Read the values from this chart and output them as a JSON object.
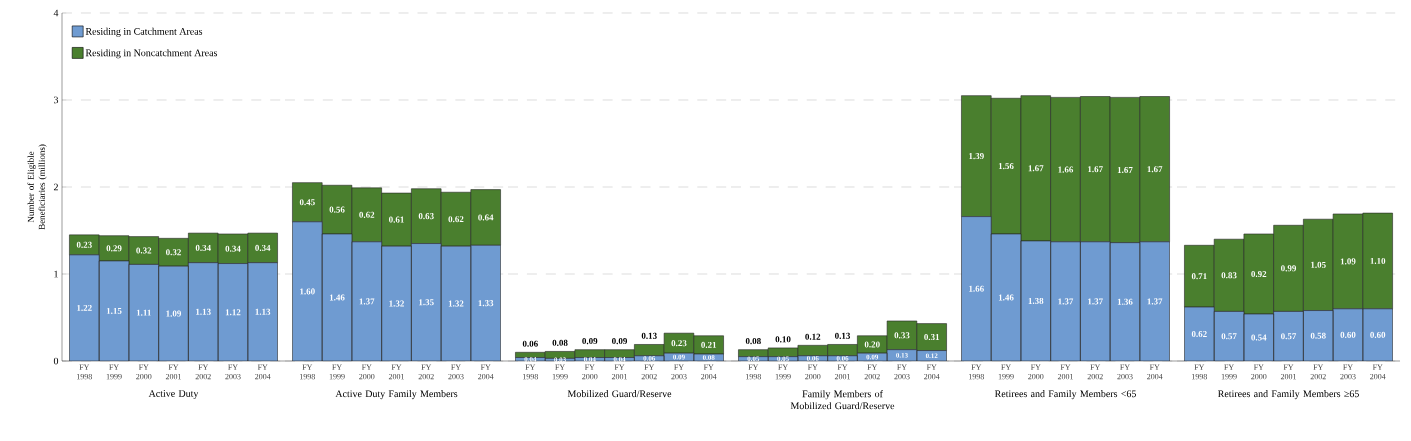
{
  "chart_data": [
    {
      "type": "bar",
      "stacked": true,
      "xlabel": "Active Duty",
      "ylabel": "Number of Eligible Beneficiaries (millions)",
      "ylim": [
        0,
        4
      ],
      "yticks": [
        0,
        1,
        2,
        3,
        4
      ],
      "grid": "y",
      "legend": "top left",
      "categories": [
        "FY 1998",
        "FY 1999",
        "FY 2000",
        "FY 2001",
        "FY 2002",
        "FY 2003",
        "FY 2004"
      ],
      "series": [
        {
          "name": "Residing in Catchment Areas",
          "color": "#6f9bd1",
          "values": [
            1.22,
            1.15,
            1.11,
            1.09,
            1.13,
            1.12,
            1.13
          ],
          "value_labels": [
            "1.22",
            "1.15",
            "1.11",
            "1.09",
            "1.13",
            "1.12",
            "1.13"
          ]
        },
        {
          "name": "Residing in Noncatchment Areas",
          "color": "#4a7f2e",
          "values": [
            0.23,
            0.29,
            0.32,
            0.32,
            0.34,
            0.34,
            0.34
          ],
          "value_labels": [
            "0.23",
            "0.29",
            "0.32",
            "0.32",
            "0.34",
            "0.34",
            "0.34"
          ]
        }
      ]
    },
    {
      "type": "bar",
      "stacked": true,
      "xlabel": "Active Duty Family Members",
      "ylim": [
        0,
        4
      ],
      "yticks": [
        0,
        1,
        2,
        3,
        4
      ],
      "grid": "y",
      "tick_labels": "x",
      "categories": [
        "FY 1998",
        "FY 1999",
        "FY 2000",
        "FY 2001",
        "FY 2002",
        "FY 2003",
        "FY 2004"
      ],
      "series": [
        {
          "color": "#6f9bd1",
          "values": [
            1.6,
            1.46,
            1.37,
            1.32,
            1.35,
            1.32,
            1.33
          ],
          "value_labels": [
            "1.60",
            "1.46",
            "1.37",
            "1.32",
            "1.35",
            "1.32",
            "1.33"
          ]
        },
        {
          "color": "#4a7f2e",
          "values": [
            0.45,
            0.56,
            0.62,
            0.61,
            0.63,
            0.62,
            0.64
          ],
          "value_labels": [
            "0.45",
            "0.56",
            "0.62",
            "0.61",
            "0.63",
            "0.62",
            "0.64"
          ]
        }
      ]
    },
    {
      "type": "bar",
      "stacked": true,
      "xlabel": "Mobilized Guard/Reserve",
      "ylim": [
        0,
        4
      ],
      "yticks": [
        0,
        1,
        2,
        3,
        4
      ],
      "grid": "y",
      "tick_labels": "x",
      "categories": [
        "FY 1998",
        "FY 1999",
        "FY 2000",
        "FY 2001",
        "FY 2002",
        "FY 2003",
        "FY 2004"
      ],
      "series": [
        {
          "color": "#6f9bd1",
          "values": [
            0.04,
            0.03,
            0.04,
            0.04,
            0.06,
            0.09,
            0.08
          ],
          "value_labels": [
            "0.04",
            "0.03",
            "0.04",
            "0.04",
            "0.06",
            "0.09",
            "0.08"
          ]
        },
        {
          "color": "#4a7f2e",
          "values": [
            0.06,
            0.08,
            0.09,
            0.09,
            0.13,
            0.23,
            0.21
          ],
          "value_labels": [
            "0.06",
            "0.08",
            "0.09",
            "0.09",
            "0.13",
            "0.23",
            "0.21"
          ]
        }
      ]
    },
    {
      "type": "bar",
      "stacked": true,
      "xlabel": "Family Members of Mobilized Guard/Reserve",
      "ylim": [
        0,
        4
      ],
      "yticks": [
        0,
        1,
        2,
        3,
        4
      ],
      "grid": "y",
      "tick_labels": "x",
      "categories": [
        "FY 1998",
        "FY 1999",
        "FY 2000",
        "FY 2001",
        "FY 2002",
        "FY 2003",
        "FY 2004"
      ],
      "series": [
        {
          "color": "#6f9bd1",
          "values": [
            0.05,
            0.05,
            0.06,
            0.06,
            0.09,
            0.13,
            0.12
          ],
          "value_labels": [
            "0.05",
            "0.05",
            "0.06",
            "0.06",
            "0.09",
            "0.13",
            "0.12"
          ]
        },
        {
          "color": "#4a7f2e",
          "values": [
            0.08,
            0.1,
            0.12,
            0.13,
            0.2,
            0.33,
            0.31
          ],
          "value_labels": [
            "0.08",
            "0.10",
            "0.12",
            "0.13",
            "0.20",
            "0.33",
            "0.31"
          ]
        }
      ]
    },
    {
      "type": "bar",
      "stacked": true,
      "xlabel": "Retirees and Family Members <65",
      "ylim": [
        0,
        4
      ],
      "yticks": [
        0,
        1,
        2,
        3,
        4
      ],
      "grid": "y",
      "tick_labels": "x",
      "categories": [
        "FY 1998",
        "FY 1999",
        "FY 2000",
        "FY 2001",
        "FY 2002",
        "FY 2003",
        "FY 2004"
      ],
      "series": [
        {
          "color": "#6f9bd1",
          "values": [
            1.66,
            1.46,
            1.38,
            1.37,
            1.37,
            1.36,
            1.37
          ],
          "value_labels": [
            "1.66",
            "1.46",
            "1.38",
            "1.37",
            "1.37",
            "1.36",
            "1.37"
          ]
        },
        {
          "color": "#4a7f2e",
          "values": [
            1.39,
            1.56,
            1.67,
            1.66,
            1.67,
            1.67,
            1.67
          ],
          "value_labels": [
            "1.39",
            "1.56",
            "1.67",
            "1.66",
            "1.67",
            "1.67",
            "1.67"
          ]
        }
      ]
    },
    {
      "type": "bar",
      "stacked": true,
      "xlabel": "Retirees and Family Members ≥65",
      "ylim": [
        0,
        4
      ],
      "yticks": [
        0,
        1,
        2,
        3,
        4
      ],
      "grid": "y",
      "tick_labels": "x",
      "categories": [
        "FY 1998",
        "FY 1999",
        "FY 2000",
        "FY 2001",
        "FY 2002",
        "FY 2003",
        "FY 2004"
      ],
      "series": [
        {
          "color": "#6f9bd1",
          "values": [
            0.62,
            0.57,
            0.54,
            0.57,
            0.58,
            0.6,
            0.6
          ],
          "value_labels": [
            "0.62",
            "0.57",
            "0.54",
            "0.57",
            "0.58",
            "0.60",
            "0.60"
          ]
        },
        {
          "color": "#4a7f2e",
          "values": [
            0.71,
            0.83,
            0.92,
            0.99,
            1.05,
            1.09,
            1.1
          ],
          "value_labels": [
            "0.71",
            "0.83",
            "0.92",
            "0.99",
            "1.05",
            "1.09",
            "1.10"
          ]
        }
      ]
    }
  ]
}
